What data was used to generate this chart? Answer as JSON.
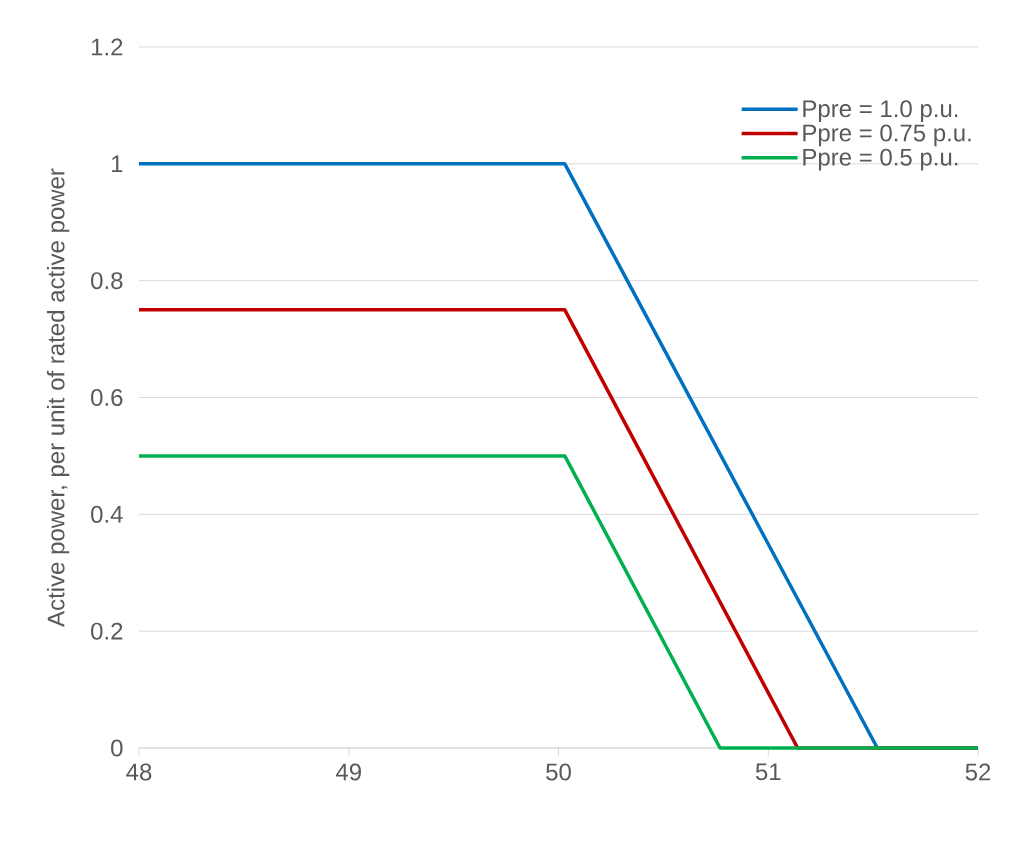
{
  "chart_data": {
    "type": "line",
    "ylabel": "Active power, per unit of rated active power",
    "series": [
      {
        "name": "Ppre = 1.0 p.u.",
        "color": "#0070c0",
        "x": [
          48,
          50.03,
          51.52,
          52
        ],
        "values": [
          1,
          1,
          0,
          0
        ]
      },
      {
        "name": "Ppre = 0.75 p.u.",
        "color": "#c00000",
        "x": [
          48,
          50.03,
          51.14,
          52
        ],
        "values": [
          0.75,
          0.75,
          0,
          0
        ]
      },
      {
        "name": "Ppre = 0.5 p.u.",
        "color": "#00b050",
        "x": [
          48,
          50.03,
          50.77,
          52
        ],
        "values": [
          0.5,
          0.5,
          0,
          0
        ]
      }
    ],
    "xlim": [
      48,
      52
    ],
    "xticks": [
      48,
      49,
      50,
      51,
      52
    ],
    "ylim": [
      0,
      1.2
    ],
    "yticks": [
      0,
      0.2,
      0.4,
      0.6,
      0.8,
      1,
      1.2
    ],
    "grid": "y",
    "legend": "top right",
    "marker": "none",
    "line_style": "solid"
  }
}
